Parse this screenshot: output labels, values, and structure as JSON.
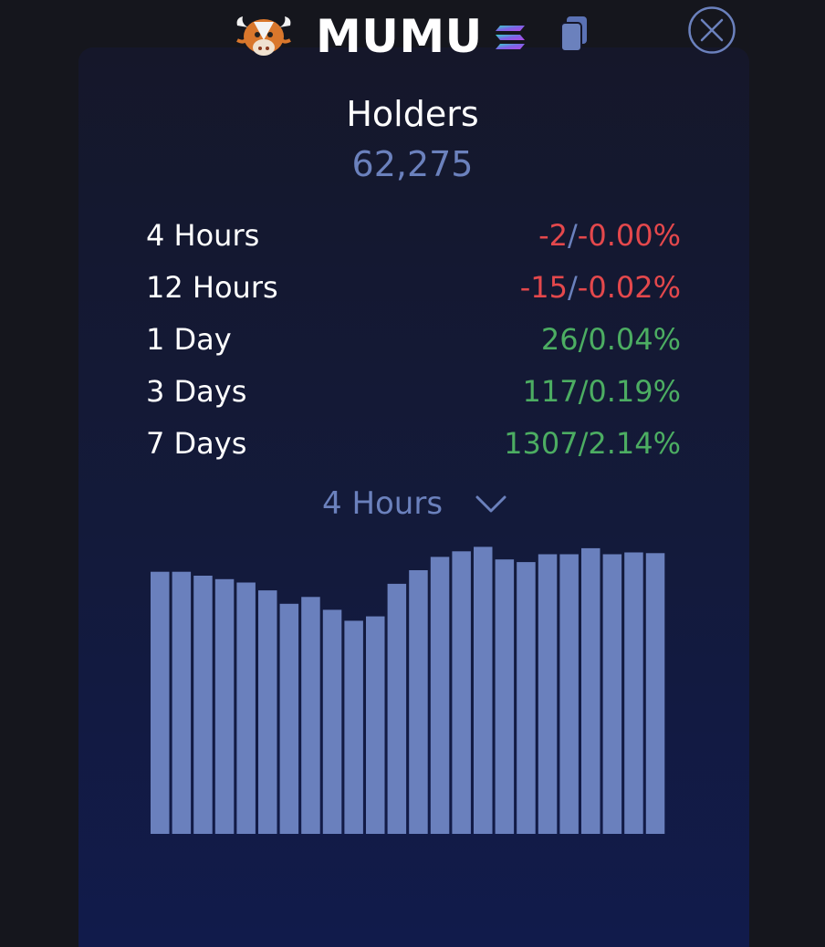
{
  "header": {
    "token_name": "MUMU",
    "logo_icon": "bull-mascot-icon",
    "chain_icon": "solana-icon",
    "copy_icon": "copy-icon",
    "close_icon": "close-circle-icon"
  },
  "holders": {
    "label": "Holders",
    "count": "62,275"
  },
  "stats": [
    {
      "label": "4 Hours",
      "change": "-2",
      "percent": "-0.00%",
      "direction": "negative"
    },
    {
      "label": "12 Hours",
      "change": "-15",
      "percent": "-0.02%",
      "direction": "negative"
    },
    {
      "label": "1 Day",
      "change": "26",
      "percent": "0.04%",
      "direction": "positive"
    },
    {
      "label": "3 Days",
      "change": "117",
      "percent": "0.19%",
      "direction": "positive"
    },
    {
      "label": "7 Days",
      "change": "1307",
      "percent": "2.14%",
      "direction": "positive"
    }
  ],
  "period_select": {
    "value": "4 Hours",
    "icon": "chevron-down-icon"
  },
  "colors": {
    "accent": "#6b81bd",
    "negative": "#e4484c",
    "positive": "#4cad62",
    "bar": "#6a80bd"
  },
  "chart_data": {
    "type": "bar",
    "values": [
      100.0,
      100.0,
      98.5,
      97.2,
      95.9,
      92.9,
      87.8,
      90.4,
      85.5,
      81.3,
      83.0,
      95.4,
      100.6,
      105.7,
      107.8,
      109.5,
      104.7,
      103.7,
      106.7,
      106.7,
      109.0,
      106.7,
      107.4,
      107.1
    ],
    "ylim": [
      0,
      110
    ],
    "grid": false
  }
}
